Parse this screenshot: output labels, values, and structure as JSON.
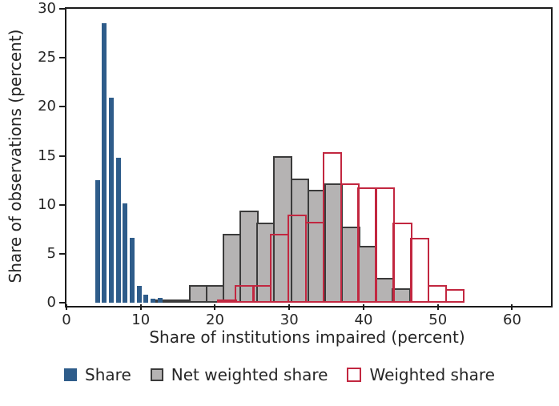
{
  "colors": {
    "background": "#ffffff",
    "text": "#262626",
    "axis": "#1b1b1b",
    "share_blue": "#2e5c8a",
    "net_weighted_gray_fill": "#b5b3b3",
    "net_weighted_gray_border": "#3b3b3b",
    "weighted_red": "#c22740"
  },
  "chart_data": {
    "type": "bar",
    "subtype": "overlaid-histograms",
    "title": "",
    "xlabel": "Share of institutions impaired (percent)",
    "ylabel": "Share of observations (percent)",
    "xlim": [
      0,
      64.8
    ],
    "ylim": [
      0,
      30
    ],
    "xticks": [
      0,
      10,
      20,
      30,
      40,
      50,
      60
    ],
    "yticks": [
      0,
      5,
      10,
      15,
      20,
      25,
      30
    ],
    "grid": false,
    "legend_position": "bottom-center",
    "series": [
      {
        "name": "Share",
        "type": "bar-centers",
        "fill": "#2e5c8a",
        "border_color": "#2e5c8a",
        "border_width": 0,
        "bar_width": 0.62,
        "z": 2,
        "x": [
          4.2,
          5.1,
          6.05,
          7.0,
          7.9,
          8.85,
          9.8,
          10.7,
          11.65,
          12.6
        ],
        "values": [
          12.5,
          28.5,
          20.9,
          14.8,
          10.1,
          6.6,
          1.7,
          0.8,
          0.4,
          0.5
        ]
      },
      {
        "name": "Net weighted share",
        "type": "bar-bins",
        "fill": "#b5b3b3",
        "border_color": "#3b3b3b",
        "border_width": 2.5,
        "bin_start": 11.9,
        "bin_width": 2.28,
        "z": 1,
        "values": [
          0.2,
          0.2,
          1.8,
          1.8,
          7.0,
          9.4,
          8.2,
          15.0,
          12.7,
          11.5,
          12.2,
          7.8,
          5.8,
          2.5,
          1.5
        ]
      },
      {
        "name": "Weighted share",
        "type": "bar-bins",
        "fill": "transparent",
        "border_color": "#c22740",
        "border_width": 2.5,
        "bin_start": 20.3,
        "bin_width": 2.36,
        "z": 3,
        "values": [
          0.3,
          1.8,
          1.8,
          7.0,
          9.0,
          8.3,
          15.4,
          12.2,
          11.8,
          11.8,
          8.2,
          6.6,
          1.8,
          1.4
        ]
      }
    ]
  }
}
